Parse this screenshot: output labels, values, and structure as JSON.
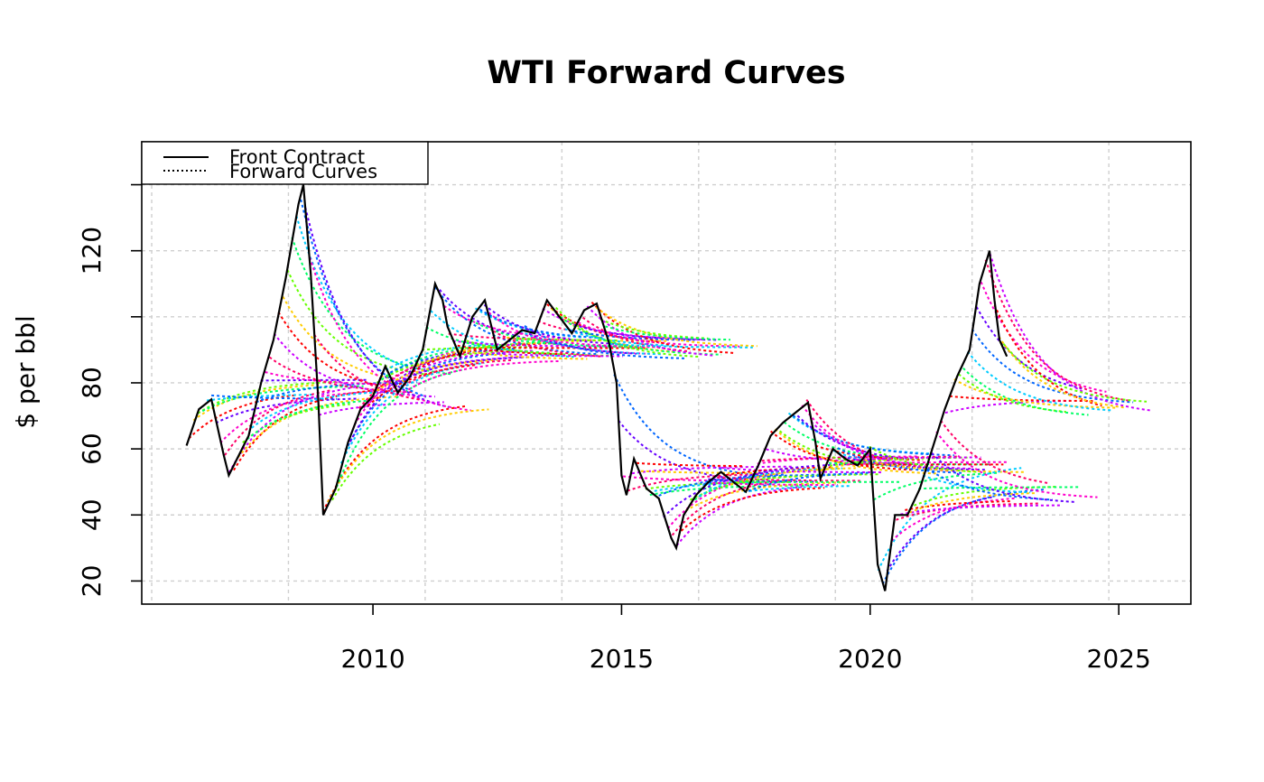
{
  "chart_data": {
    "type": "line",
    "title": "WTI Forward Curves",
    "xlabel": "",
    "ylabel": "$ per bbl",
    "xlim": [
      2005.35,
      2026.45
    ],
    "ylim": [
      13,
      153
    ],
    "x_ticks": [
      2010,
      2015,
      2020,
      2025
    ],
    "x_tick_labels": [
      "2010",
      "2015",
      "2020",
      "2025"
    ],
    "x_grid": [
      2005.55,
      2008.3,
      2011.05,
      2013.8,
      2016.55,
      2019.3,
      2022.05,
      2024.8
    ],
    "y_ticks": [
      20,
      40,
      60,
      80,
      100,
      120,
      140
    ],
    "y_tick_labels": [
      "20",
      "40",
      "60",
      "80",
      "",
      "120",
      ""
    ],
    "grid": true,
    "legend_position": "top-left",
    "legend": [
      {
        "label": "Front Contract",
        "style": "solid"
      },
      {
        "label": "Forward Curves",
        "style": "dotted"
      }
    ],
    "palette": [
      "#ff0000",
      "#ffcc00",
      "#66ff00",
      "#00ff66",
      "#00ccff",
      "#0066ff",
      "#6600ff",
      "#ff00cc",
      "#ff0066",
      "#cc00ff"
    ],
    "series": [
      {
        "name": "Front Contract",
        "style": "solid",
        "color": "#000000",
        "x": [
          2006.25,
          2006.5,
          2006.75,
          2007.0,
          2007.1,
          2007.5,
          2007.75,
          2008.0,
          2008.25,
          2008.5,
          2008.6,
          2008.75,
          2008.9,
          2009.0,
          2009.25,
          2009.5,
          2009.75,
          2010.0,
          2010.25,
          2010.5,
          2010.75,
          2011.0,
          2011.25,
          2011.4,
          2011.5,
          2011.75,
          2012.0,
          2012.25,
          2012.5,
          2012.75,
          2013.0,
          2013.25,
          2013.5,
          2013.75,
          2014.0,
          2014.25,
          2014.5,
          2014.75,
          2014.9,
          2015.0,
          2015.1,
          2015.25,
          2015.5,
          2015.75,
          2016.0,
          2016.1,
          2016.25,
          2016.5,
          2016.75,
          2017.0,
          2017.25,
          2017.5,
          2017.75,
          2018.0,
          2018.25,
          2018.5,
          2018.75,
          2018.9,
          2019.0,
          2019.25,
          2019.5,
          2019.75,
          2020.0,
          2020.15,
          2020.3,
          2020.5,
          2020.75,
          2021.0,
          2021.25,
          2021.5,
          2021.75,
          2022.0,
          2022.2,
          2022.4,
          2022.5,
          2022.6,
          2022.75
        ],
        "y": [
          61,
          72,
          75,
          58,
          52,
          64,
          80,
          93,
          112,
          134,
          140,
          113,
          75,
          40,
          48,
          62,
          72,
          76,
          85,
          77,
          82,
          90,
          110,
          105,
          97,
          88,
          100,
          105,
          90,
          93,
          96,
          95,
          105,
          100,
          95,
          102,
          104,
          92,
          80,
          52,
          46,
          57,
          48,
          45,
          33,
          30,
          40,
          46,
          50,
          53,
          50,
          47,
          55,
          64,
          68,
          71,
          74,
          62,
          51,
          60,
          57,
          55,
          60,
          25,
          17,
          40,
          40,
          48,
          60,
          72,
          82,
          90,
          110,
          120,
          105,
          93,
          88
        ]
      }
    ]
  }
}
